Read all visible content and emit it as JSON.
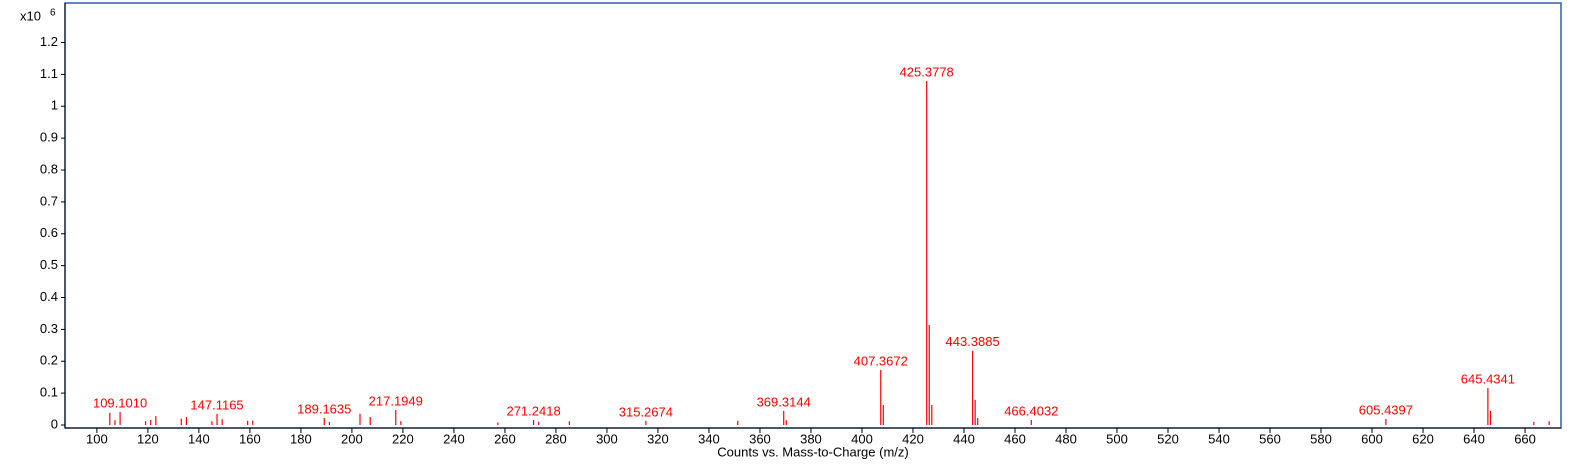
{
  "chart_data": {
    "type": "stick",
    "x_axis_label": "Counts vs. Mass-to-Charge (m/z)",
    "y_multiplier": {
      "base": "x10",
      "exponent": 6
    },
    "color": "#ff0000",
    "xlim": [
      87.5,
      674.1
    ],
    "ylim": [
      0,
      1.324
    ],
    "xticks": [
      100,
      120,
      140,
      160,
      180,
      200,
      220,
      240,
      260,
      280,
      300,
      320,
      340,
      360,
      380,
      400,
      420,
      440,
      460,
      480,
      500,
      520,
      540,
      560,
      580,
      600,
      620,
      640,
      660
    ],
    "yticks": [
      0,
      0.1,
      0.2,
      0.3,
      0.4,
      0.5,
      0.6,
      0.7,
      0.8,
      0.9,
      1,
      1.1,
      1.2
    ],
    "x": [
      105.07,
      107.09,
      109.101,
      119.09,
      121.1,
      123.12,
      133.1,
      135.12,
      145.1,
      147.1165,
      149.13,
      159.12,
      161.13,
      189.1635,
      191.18,
      203.18,
      207.18,
      217.1949,
      219.2,
      257.23,
      271.2418,
      273.26,
      285.25,
      315.2674,
      351.3,
      369.3144,
      370.32,
      407.3672,
      408.37,
      425.3778,
      426.38,
      427.38,
      443.3885,
      444.39,
      445.39,
      466.4032,
      605.4397,
      645.4341,
      646.44,
      663.45,
      669.45
    ],
    "values": [
      0.038,
      0.015,
      0.041,
      0.012,
      0.016,
      0.028,
      0.02,
      0.025,
      0.012,
      0.035,
      0.018,
      0.013,
      0.014,
      0.022,
      0.01,
      0.035,
      0.025,
      0.047,
      0.012,
      0.008,
      0.016,
      0.01,
      0.012,
      0.013,
      0.013,
      0.044,
      0.015,
      0.173,
      0.063,
      1.079,
      0.314,
      0.063,
      0.233,
      0.079,
      0.022,
      0.016,
      0.019,
      0.116,
      0.044,
      0.01,
      0.012
    ],
    "peak_labels": [
      null,
      null,
      "109.1010",
      null,
      null,
      null,
      null,
      null,
      null,
      "147.1165",
      null,
      null,
      null,
      "189.1635",
      null,
      null,
      null,
      "217.1949",
      null,
      null,
      "271.2418",
      null,
      null,
      "315.2674",
      null,
      "369.3144",
      null,
      "407.3672",
      null,
      "425.3778",
      null,
      null,
      "443.3885",
      null,
      null,
      "466.4032",
      "605.4397",
      "645.4341",
      null,
      null,
      null
    ]
  }
}
